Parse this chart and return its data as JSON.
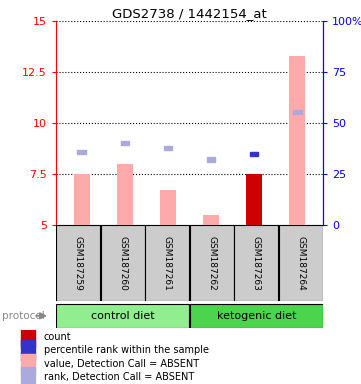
{
  "title": "GDS2738 / 1442154_at",
  "samples": [
    "GSM187259",
    "GSM187260",
    "GSM187261",
    "GSM187262",
    "GSM187263",
    "GSM187264"
  ],
  "ylim_left": [
    5,
    15
  ],
  "ylim_right": [
    0,
    100
  ],
  "yticks_left": [
    5,
    7.5,
    10,
    12.5,
    15
  ],
  "yticks_right": [
    0,
    25,
    50,
    75,
    100
  ],
  "ytick_labels_left": [
    "5",
    "7.5",
    "10",
    "12.5",
    "15"
  ],
  "ytick_labels_right": [
    "0",
    "25",
    "50",
    "75",
    "100%"
  ],
  "bar_values": [
    7.5,
    8.0,
    6.7,
    5.45,
    7.5,
    13.3
  ],
  "bar_colors": [
    "#ffaaaa",
    "#ffaaaa",
    "#ffaaaa",
    "#ffaaaa",
    "#cc0000",
    "#ffaaaa"
  ],
  "blue_square_values": [
    8.55,
    9.0,
    8.75,
    8.2,
    8.45,
    10.55
  ],
  "blue_square_colors": [
    "#aaaadd",
    "#aaaadd",
    "#aaaadd",
    "#aaaadd",
    "#3333cc",
    "#aaaadd"
  ],
  "x_positions": [
    0,
    1,
    2,
    3,
    4,
    5
  ],
  "bar_bottom": 5,
  "ctrl_color": "#90ee90",
  "ket_color": "#4cd44c",
  "sample_box_color": "#cccccc",
  "legend_items": [
    {
      "color": "#cc0000",
      "label": "count"
    },
    {
      "color": "#3333cc",
      "label": "percentile rank within the sample"
    },
    {
      "color": "#ffaaaa",
      "label": "value, Detection Call = ABSENT"
    },
    {
      "color": "#aaaadd",
      "label": "rank, Detection Call = ABSENT"
    }
  ]
}
